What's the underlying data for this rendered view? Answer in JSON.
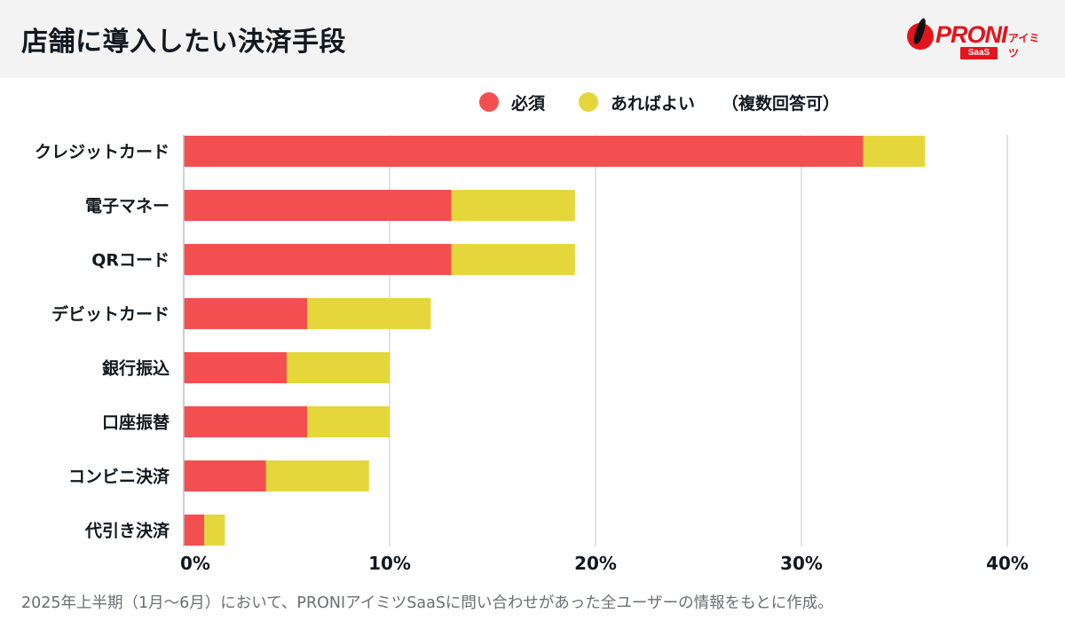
{
  "header": {
    "title": "店舗に導入したい決済手段",
    "logo": {
      "name": "PRONI",
      "suffix": "アイミツ",
      "badge": "SaaS"
    }
  },
  "legend": {
    "items": [
      {
        "label": "必須",
        "color": "#f44f50"
      },
      {
        "label": "あればよい",
        "color": "#e5d73b"
      }
    ],
    "note": "（複数回答可）"
  },
  "footer": {
    "note": "2025年上半期（1月～6月）において、PRONIアイミツSaaSに問い合わせがあった全ユーザーの情報をもとに作成。"
  },
  "chart_data": {
    "type": "bar",
    "orientation": "horizontal",
    "stacked": true,
    "title": "店舗に導入したい決済手段",
    "xlabel": "",
    "ylabel": "",
    "categories": [
      "クレジットカード",
      "電子マネー",
      "QRコード",
      "デビットカード",
      "銀行振込",
      "口座振替",
      "コンビニ決済",
      "代引き決済"
    ],
    "series": [
      {
        "name": "必須",
        "color": "#f44f50",
        "values": [
          33,
          13,
          13,
          6,
          5,
          6,
          4,
          1
        ]
      },
      {
        "name": "あればよい",
        "color": "#e5d73b",
        "values": [
          3,
          6,
          6,
          6,
          5,
          4,
          5,
          1
        ]
      }
    ],
    "xlim": [
      0,
      40
    ],
    "xticks": [
      0,
      10,
      20,
      30,
      40
    ],
    "xtick_labels": [
      "0%",
      "10%",
      "20%",
      "30%",
      "40%"
    ],
    "grid": true,
    "legend_position": "top-right",
    "legend_note": "（複数回答可）",
    "grid_color": "#d9d9d9"
  }
}
